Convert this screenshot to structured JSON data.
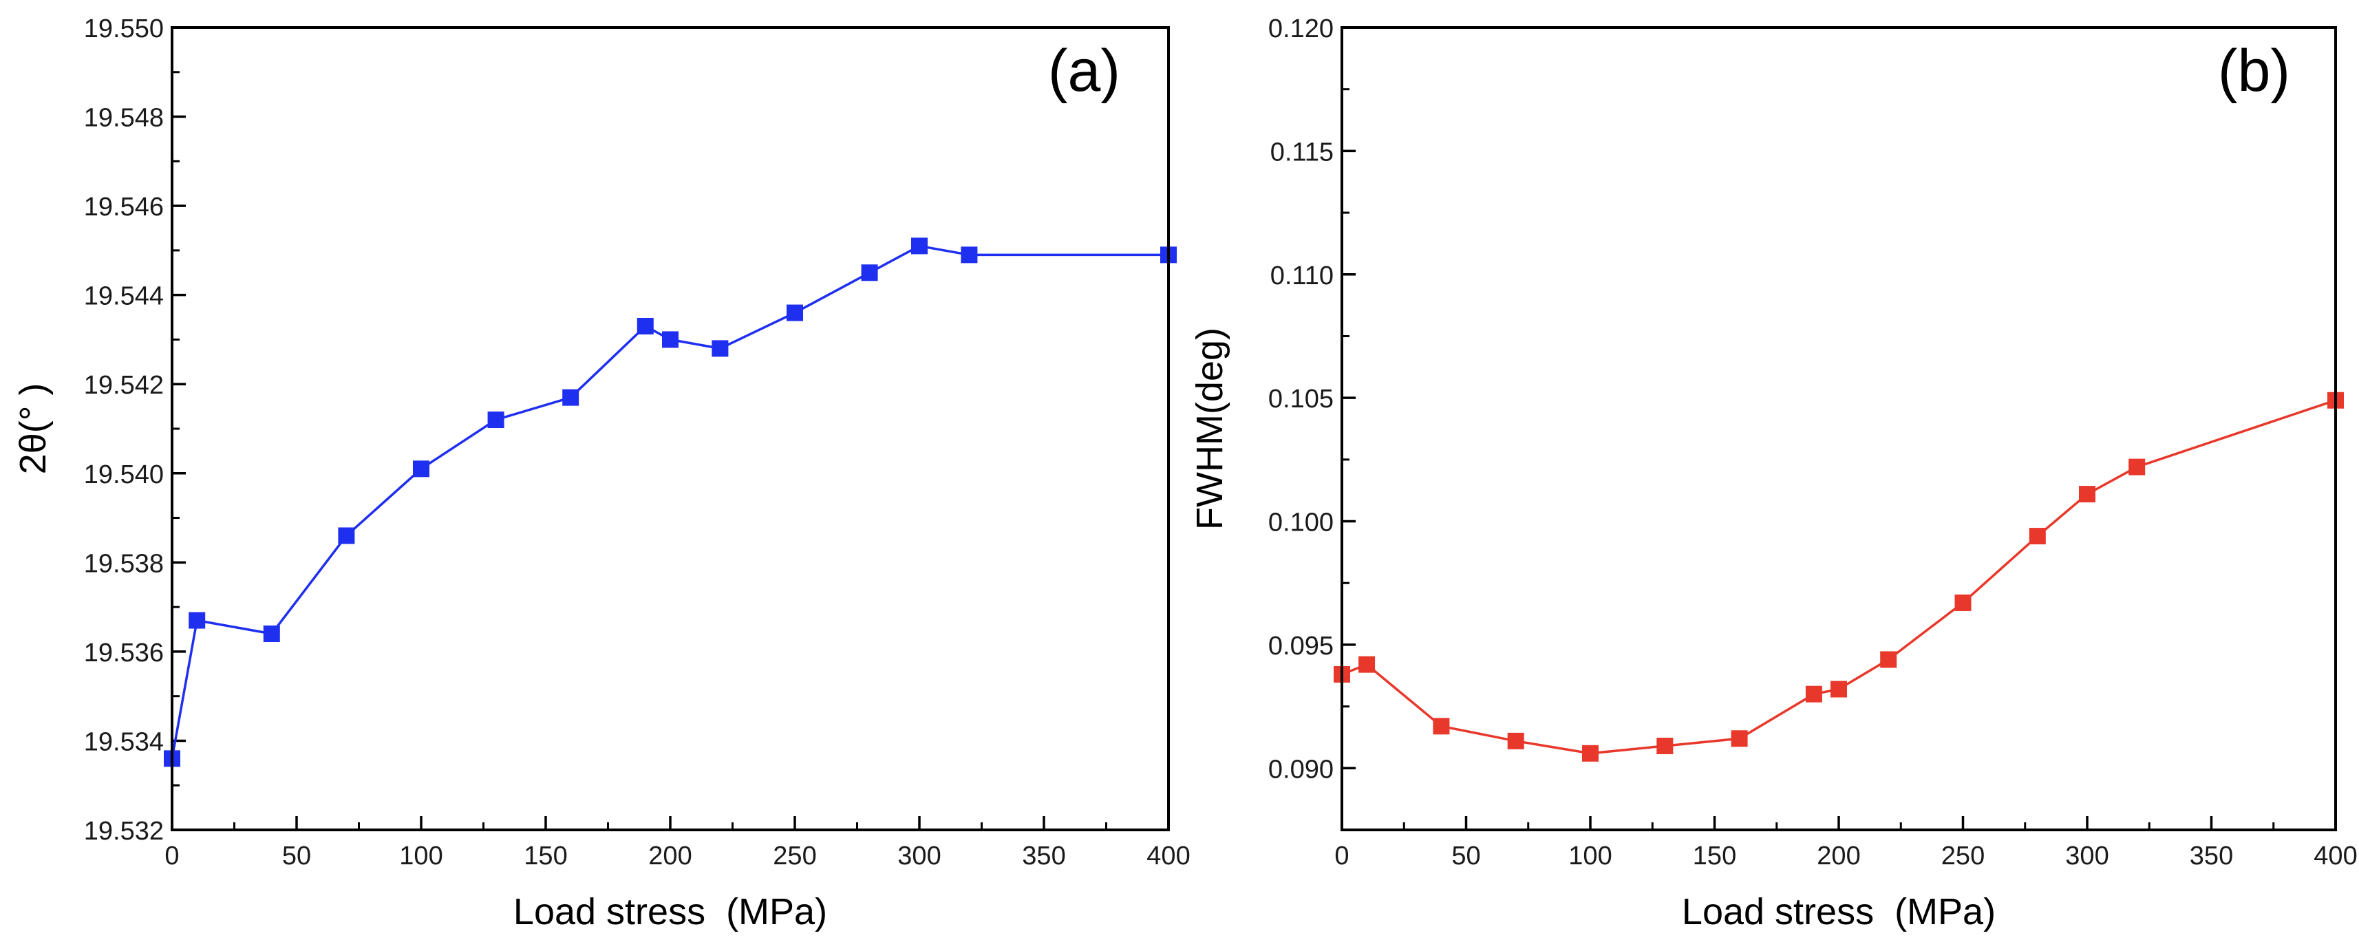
{
  "chart_data": [
    {
      "type": "line",
      "panel_label": "(a)",
      "xlabel": "Load stress  (MPa)",
      "ylabel": "2θ(° )",
      "xlim": [
        0,
        400
      ],
      "ylim": [
        19.532,
        19.55
      ],
      "x_ticks": [
        0,
        50,
        100,
        150,
        200,
        250,
        300,
        350,
        400
      ],
      "y_ticks": [
        19.532,
        19.534,
        19.536,
        19.538,
        19.54,
        19.542,
        19.544,
        19.546,
        19.548,
        19.55
      ],
      "y_tick_labels": [
        "19.532",
        "19.534",
        "19.536",
        "19.538",
        "19.540",
        "19.542",
        "19.544",
        "19.546",
        "19.548",
        "19.550"
      ],
      "grid": false,
      "series": [
        {
          "name": "2θ",
          "color": "#1f2ff0",
          "marker": "square",
          "x": [
            0,
            10,
            40,
            70,
            100,
            130,
            160,
            190,
            200,
            220,
            250,
            280,
            300,
            320,
            400
          ],
          "y": [
            19.5336,
            19.5367,
            19.5364,
            19.5386,
            19.5401,
            19.5412,
            19.5417,
            19.5433,
            19.543,
            19.5428,
            19.5436,
            19.5445,
            19.5451,
            19.5449,
            19.5449
          ]
        }
      ]
    },
    {
      "type": "line",
      "panel_label": "(b)",
      "xlabel": "Load stress  (MPa)",
      "ylabel": "FWHM(deg)",
      "xlim": [
        0,
        400
      ],
      "ylim": [
        0.0875,
        0.12
      ],
      "x_ticks": [
        0,
        50,
        100,
        150,
        200,
        250,
        300,
        350,
        400
      ],
      "y_ticks": [
        0.09,
        0.095,
        0.1,
        0.105,
        0.11,
        0.115,
        0.12
      ],
      "y_tick_labels": [
        "0.090",
        "0.095",
        "0.100",
        "0.105",
        "0.110",
        "0.115",
        "0.120"
      ],
      "grid": false,
      "series": [
        {
          "name": "FWHM",
          "color": "#e8382b",
          "marker": "square",
          "x": [
            0,
            10,
            40,
            70,
            100,
            130,
            160,
            190,
            200,
            220,
            250,
            280,
            300,
            320,
            400
          ],
          "y": [
            0.0938,
            0.0942,
            0.0917,
            0.0911,
            0.0906,
            0.0909,
            0.0912,
            0.093,
            0.0932,
            0.0944,
            0.0967,
            0.0994,
            0.1011,
            0.1022,
            0.1049
          ]
        }
      ]
    }
  ]
}
